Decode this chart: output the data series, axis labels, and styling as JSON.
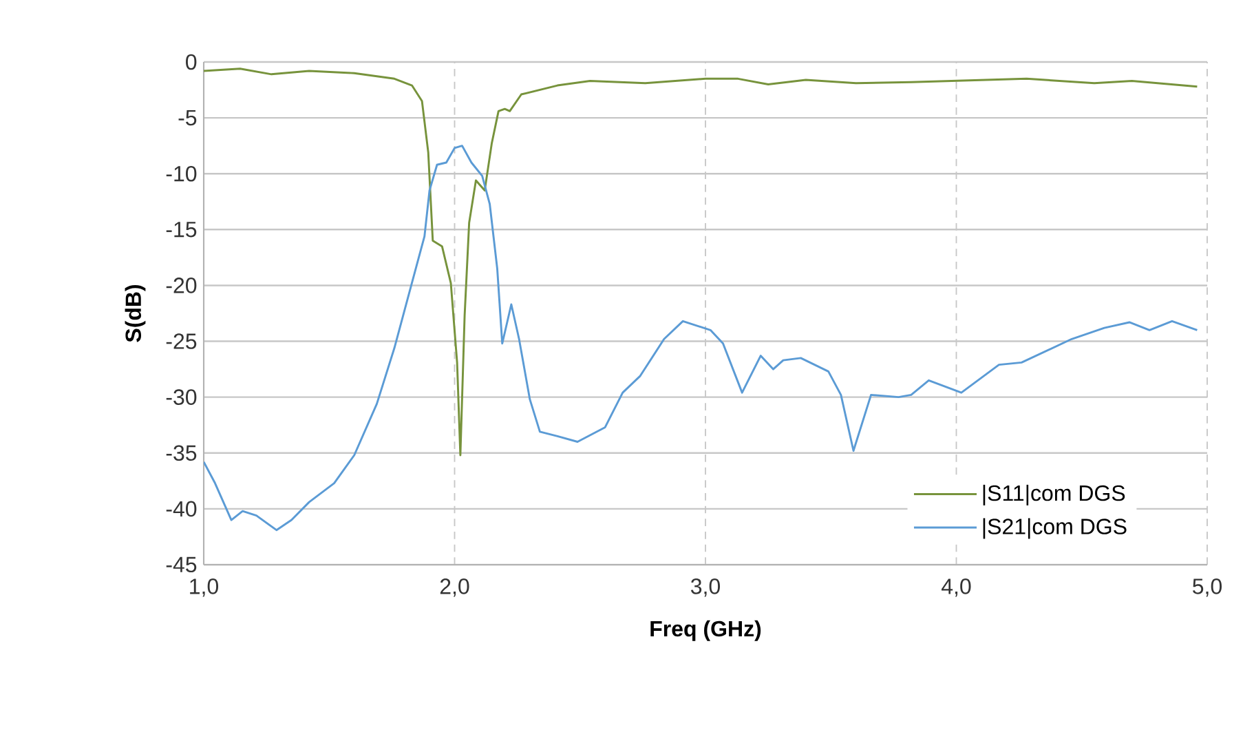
{
  "chart_data": {
    "type": "line",
    "xlabel": "Freq (GHz)",
    "ylabel": "S(dB)",
    "xlim": [
      1,
      5
    ],
    "ylim": [
      -45,
      0
    ],
    "xticks": [
      {
        "value": 1,
        "label": "1,0"
      },
      {
        "value": 2,
        "label": "2,0"
      },
      {
        "value": 3,
        "label": "3,0"
      },
      {
        "value": 4,
        "label": "4,0"
      },
      {
        "value": 5,
        "label": "5,0"
      }
    ],
    "yticks": [
      0,
      -5,
      -10,
      -15,
      -20,
      -25,
      -30,
      -35,
      -40,
      -45
    ],
    "grid": true,
    "legend": "bottom right",
    "marker": "none",
    "line_style": "solid",
    "series": [
      {
        "name": "|S11|com DGS",
        "color": "#77933c",
        "x": [
          1.0,
          1.145,
          1.27,
          1.42,
          1.6,
          1.76,
          1.83,
          1.87,
          1.895,
          1.913,
          1.95,
          1.985,
          2.01,
          2.023,
          2.04,
          2.058,
          2.085,
          2.12,
          2.148,
          2.175,
          2.2,
          2.22,
          2.266,
          2.41,
          2.54,
          2.76,
          3.0,
          3.13,
          3.25,
          3.4,
          3.6,
          3.82,
          4.28,
          4.55,
          4.7,
          4.96
        ],
        "values": [
          -0.8,
          -0.6,
          -1.1,
          -0.8,
          -1.0,
          -1.5,
          -2.1,
          -3.5,
          -8.1,
          -16.0,
          -16.5,
          -19.8,
          -26.9,
          -35.2,
          -22.7,
          -14.4,
          -10.6,
          -11.5,
          -7.3,
          -4.4,
          -4.2,
          -4.4,
          -2.9,
          -2.1,
          -1.7,
          -1.9,
          -1.5,
          -1.5,
          -2.0,
          -1.6,
          -1.9,
          -1.8,
          -1.5,
          -1.9,
          -1.7,
          -2.2
        ]
      },
      {
        "name": "|S21|com DGS",
        "color": "#5b9bd5",
        "x": [
          1.0,
          1.045,
          1.11,
          1.155,
          1.21,
          1.29,
          1.35,
          1.42,
          1.52,
          1.6,
          1.69,
          1.76,
          1.82,
          1.88,
          1.9,
          1.93,
          1.967,
          2.0,
          2.03,
          2.067,
          2.11,
          2.14,
          2.17,
          2.19,
          2.226,
          2.257,
          2.3,
          2.34,
          2.41,
          2.49,
          2.6,
          2.67,
          2.74,
          2.835,
          2.91,
          3.02,
          3.07,
          3.146,
          3.22,
          3.27,
          3.31,
          3.38,
          3.49,
          3.54,
          3.59,
          3.66,
          3.77,
          3.82,
          3.89,
          4.02,
          4.17,
          4.26,
          4.46,
          4.59,
          4.69,
          4.77,
          4.86,
          4.96
        ],
        "values": [
          -35.8,
          -37.7,
          -41.0,
          -40.2,
          -40.6,
          -41.9,
          -41.0,
          -39.4,
          -37.7,
          -35.2,
          -30.6,
          -25.6,
          -20.6,
          -15.6,
          -11.5,
          -9.2,
          -9.0,
          -7.7,
          -7.5,
          -9.0,
          -10.2,
          -12.7,
          -18.5,
          -25.2,
          -21.7,
          -24.8,
          -30.2,
          -33.1,
          -33.5,
          -34.0,
          -32.7,
          -29.6,
          -28.1,
          -24.8,
          -23.2,
          -24.0,
          -25.2,
          -29.6,
          -26.3,
          -27.5,
          -26.7,
          -26.5,
          -27.7,
          -29.8,
          -34.8,
          -29.8,
          -30.0,
          -29.8,
          -28.5,
          -29.6,
          -27.1,
          -26.9,
          -24.8,
          -23.8,
          -23.3,
          -24.0,
          -23.2,
          -24.0
        ]
      }
    ]
  }
}
